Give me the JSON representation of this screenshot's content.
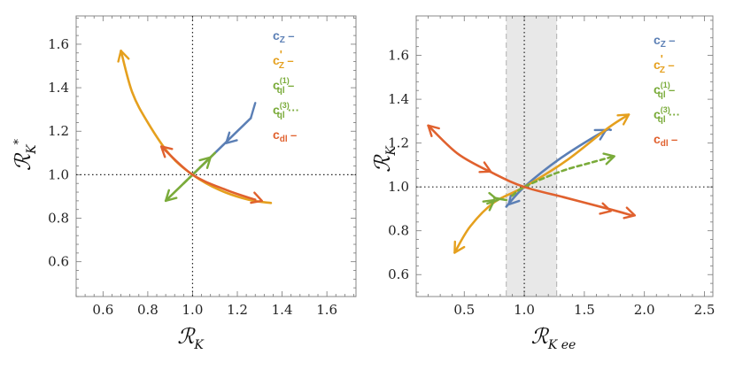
{
  "chart_data": [
    {
      "type": "line",
      "panel": "left",
      "xlabel": "RK",
      "xlabel_main": "ℛ",
      "xlabel_sub": "K",
      "ylabel": "RK*",
      "ylabel_main": "ℛ",
      "ylabel_sub": "K",
      "ylabel_sup": "*",
      "xlim": [
        0.48,
        1.73
      ],
      "ylim": [
        0.44,
        1.73
      ],
      "xticks": [
        0.6,
        0.8,
        1.0,
        1.2,
        1.4,
        1.6
      ],
      "yticks": [
        0.6,
        0.8,
        1.0,
        1.2,
        1.4,
        1.6
      ],
      "xtick_labels": [
        "0.6",
        "0.8",
        "1.0",
        "1.2",
        "1.4",
        "1.6"
      ],
      "ytick_labels": [
        "0.6",
        "0.8",
        "1.0",
        "1.2",
        "1.4",
        "1.6"
      ],
      "reference_lines": {
        "x": 1.0,
        "y": 1.0
      },
      "series": [
        {
          "name": "cZ",
          "label_main": "c",
          "label_sub": "Z",
          "label_sup": "",
          "line_glyph": "–",
          "color": "#5b7fb5",
          "dash": "solid",
          "points": [
            [
              1.0,
              1.0
            ],
            [
              1.13,
              1.13
            ],
            [
              1.26,
              1.26
            ]
          ],
          "branch_end": [
            1.28,
            1.33
          ],
          "arrows": [
            [
              1.15,
              1.145,
              -1
            ]
          ]
        },
        {
          "name": "cZ'",
          "label_main": "c",
          "label_sub": "Z",
          "label_sup": "'",
          "line_glyph": "–",
          "color": "#e5a01e",
          "dash": "solid",
          "points": [
            [
              0.68,
              1.57
            ],
            [
              0.73,
              1.38
            ],
            [
              0.8,
              1.24
            ],
            [
              0.9,
              1.09
            ],
            [
              1.0,
              1.0
            ],
            [
              1.12,
              0.93
            ],
            [
              1.25,
              0.885
            ],
            [
              1.35,
              0.87
            ]
          ],
          "arrows": [
            [
              0.68,
              1.57,
              -1
            ]
          ]
        },
        {
          "name": "cql(1)",
          "label_main": "c",
          "label_sub": "ql",
          "label_sup": "(1)",
          "line_glyph": "–",
          "color": "#7aab3a",
          "dash": "solid",
          "points": [
            [
              1.1,
              1.1
            ],
            [
              1.0,
              1.0
            ],
            [
              0.93,
              0.93
            ],
            [
              0.88,
              0.88
            ]
          ],
          "arrows": [
            [
              0.88,
              0.88,
              1
            ],
            [
              1.08,
              1.08,
              -1
            ]
          ]
        },
        {
          "name": "cql(3)",
          "label_main": "c",
          "label_sub": "ql",
          "label_sup": "(3)",
          "line_glyph": "···",
          "color": "#7aab3a",
          "dash": "dotted",
          "points": [
            [
              1.0,
              1.0
            ],
            [
              0.95,
              0.95
            ]
          ],
          "arrows": []
        },
        {
          "name": "cdl",
          "label_main": "c",
          "label_sub": "dl",
          "label_sup": "",
          "line_glyph": "–",
          "color": "#e0612e",
          "dash": "solid",
          "points": [
            [
              0.87,
              1.12
            ],
            [
              1.0,
              1.0
            ],
            [
              1.15,
              0.93
            ],
            [
              1.28,
              0.885
            ]
          ],
          "arrows": [
            [
              0.86,
              1.13,
              -1
            ],
            [
              1.31,
              0.88,
              1
            ]
          ]
        }
      ]
    },
    {
      "type": "line",
      "panel": "right",
      "xlabel": "RK ee",
      "xlabel_main": "ℛ",
      "xlabel_sub": "K ee",
      "ylabel": "RK",
      "ylabel_main": "ℛ",
      "ylabel_sub": "K",
      "xlim": [
        0.1,
        2.57
      ],
      "ylim": [
        0.5,
        1.78
      ],
      "xticks": [
        0.5,
        1.0,
        1.5,
        2.0,
        2.5
      ],
      "yticks": [
        0.6,
        0.8,
        1.0,
        1.2,
        1.4,
        1.6
      ],
      "xtick_labels": [
        "0.5",
        "1.0",
        "1.5",
        "2.0",
        "2.5"
      ],
      "ytick_labels": [
        "0.6",
        "0.8",
        "1.0",
        "1.2",
        "1.4",
        "1.6"
      ],
      "reference_lines": {
        "x": 1.0,
        "y": 1.0
      },
      "band": {
        "x_min": 0.85,
        "x_max": 1.27
      },
      "series": [
        {
          "name": "cZ",
          "label_main": "c",
          "label_sub": "Z",
          "label_sup": "",
          "line_glyph": "–",
          "color": "#5b7fb5",
          "dash": "solid",
          "points": [
            [
              0.85,
              0.91
            ],
            [
              1.0,
              1.0
            ],
            [
              1.3,
              1.13
            ],
            [
              1.65,
              1.25
            ],
            [
              1.72,
              1.26
            ]
          ],
          "arrows": [
            [
              0.87,
              0.92,
              -1
            ],
            [
              1.68,
              1.26,
              1
            ]
          ]
        },
        {
          "name": "cZ'",
          "label_main": "c",
          "label_sub": "Z",
          "label_sup": "'",
          "line_glyph": "–",
          "color": "#e5a01e",
          "dash": "solid",
          "points": [
            [
              0.42,
              0.7
            ],
            [
              0.55,
              0.82
            ],
            [
              0.75,
              0.93
            ],
            [
              1.0,
              1.0
            ],
            [
              1.35,
              1.12
            ],
            [
              1.7,
              1.27
            ],
            [
              1.87,
              1.33
            ]
          ],
          "arrows": [
            [
              0.42,
              0.7,
              -1
            ],
            [
              1.87,
              1.33,
              1
            ]
          ]
        },
        {
          "name": "cql(1)",
          "label_main": "c",
          "label_sub": "ql",
          "label_sup": "(1)",
          "line_glyph": "–",
          "color": "#7aab3a",
          "dash": "solid",
          "points": [
            [
              0.75,
              0.95
            ],
            [
              0.85,
              0.94
            ]
          ],
          "arrows": [
            [
              0.78,
              0.94,
              1
            ]
          ]
        },
        {
          "name": "cql(3)",
          "label_main": "c",
          "label_sub": "ql",
          "label_sup": "(3)",
          "line_glyph": "···",
          "color": "#7aab3a",
          "dash": "dotted",
          "points": [
            [
              0.9,
              0.96
            ],
            [
              1.0,
              1.0
            ],
            [
              1.3,
              1.07
            ],
            [
              1.55,
              1.11
            ],
            [
              1.75,
              1.14
            ]
          ],
          "arrows": [
            [
              1.75,
              1.14,
              1
            ],
            [
              0.75,
              0.94,
              1
            ]
          ]
        },
        {
          "name": "cdl",
          "label_main": "c",
          "label_sub": "dl",
          "label_sup": "",
          "line_glyph": "–",
          "color": "#e0612e",
          "dash": "solid",
          "points": [
            [
              0.2,
              1.28
            ],
            [
              0.45,
              1.15
            ],
            [
              0.75,
              1.06
            ],
            [
              1.0,
              1.0
            ],
            [
              1.35,
              0.95
            ],
            [
              1.7,
              0.9
            ],
            [
              1.9,
              0.87
            ]
          ],
          "arrows": [
            [
              0.2,
              1.28,
              -1
            ],
            [
              1.92,
              0.87,
              1
            ],
            [
              0.72,
              1.07,
              1
            ],
            [
              1.72,
              0.89,
              1
            ]
          ]
        }
      ]
    }
  ]
}
